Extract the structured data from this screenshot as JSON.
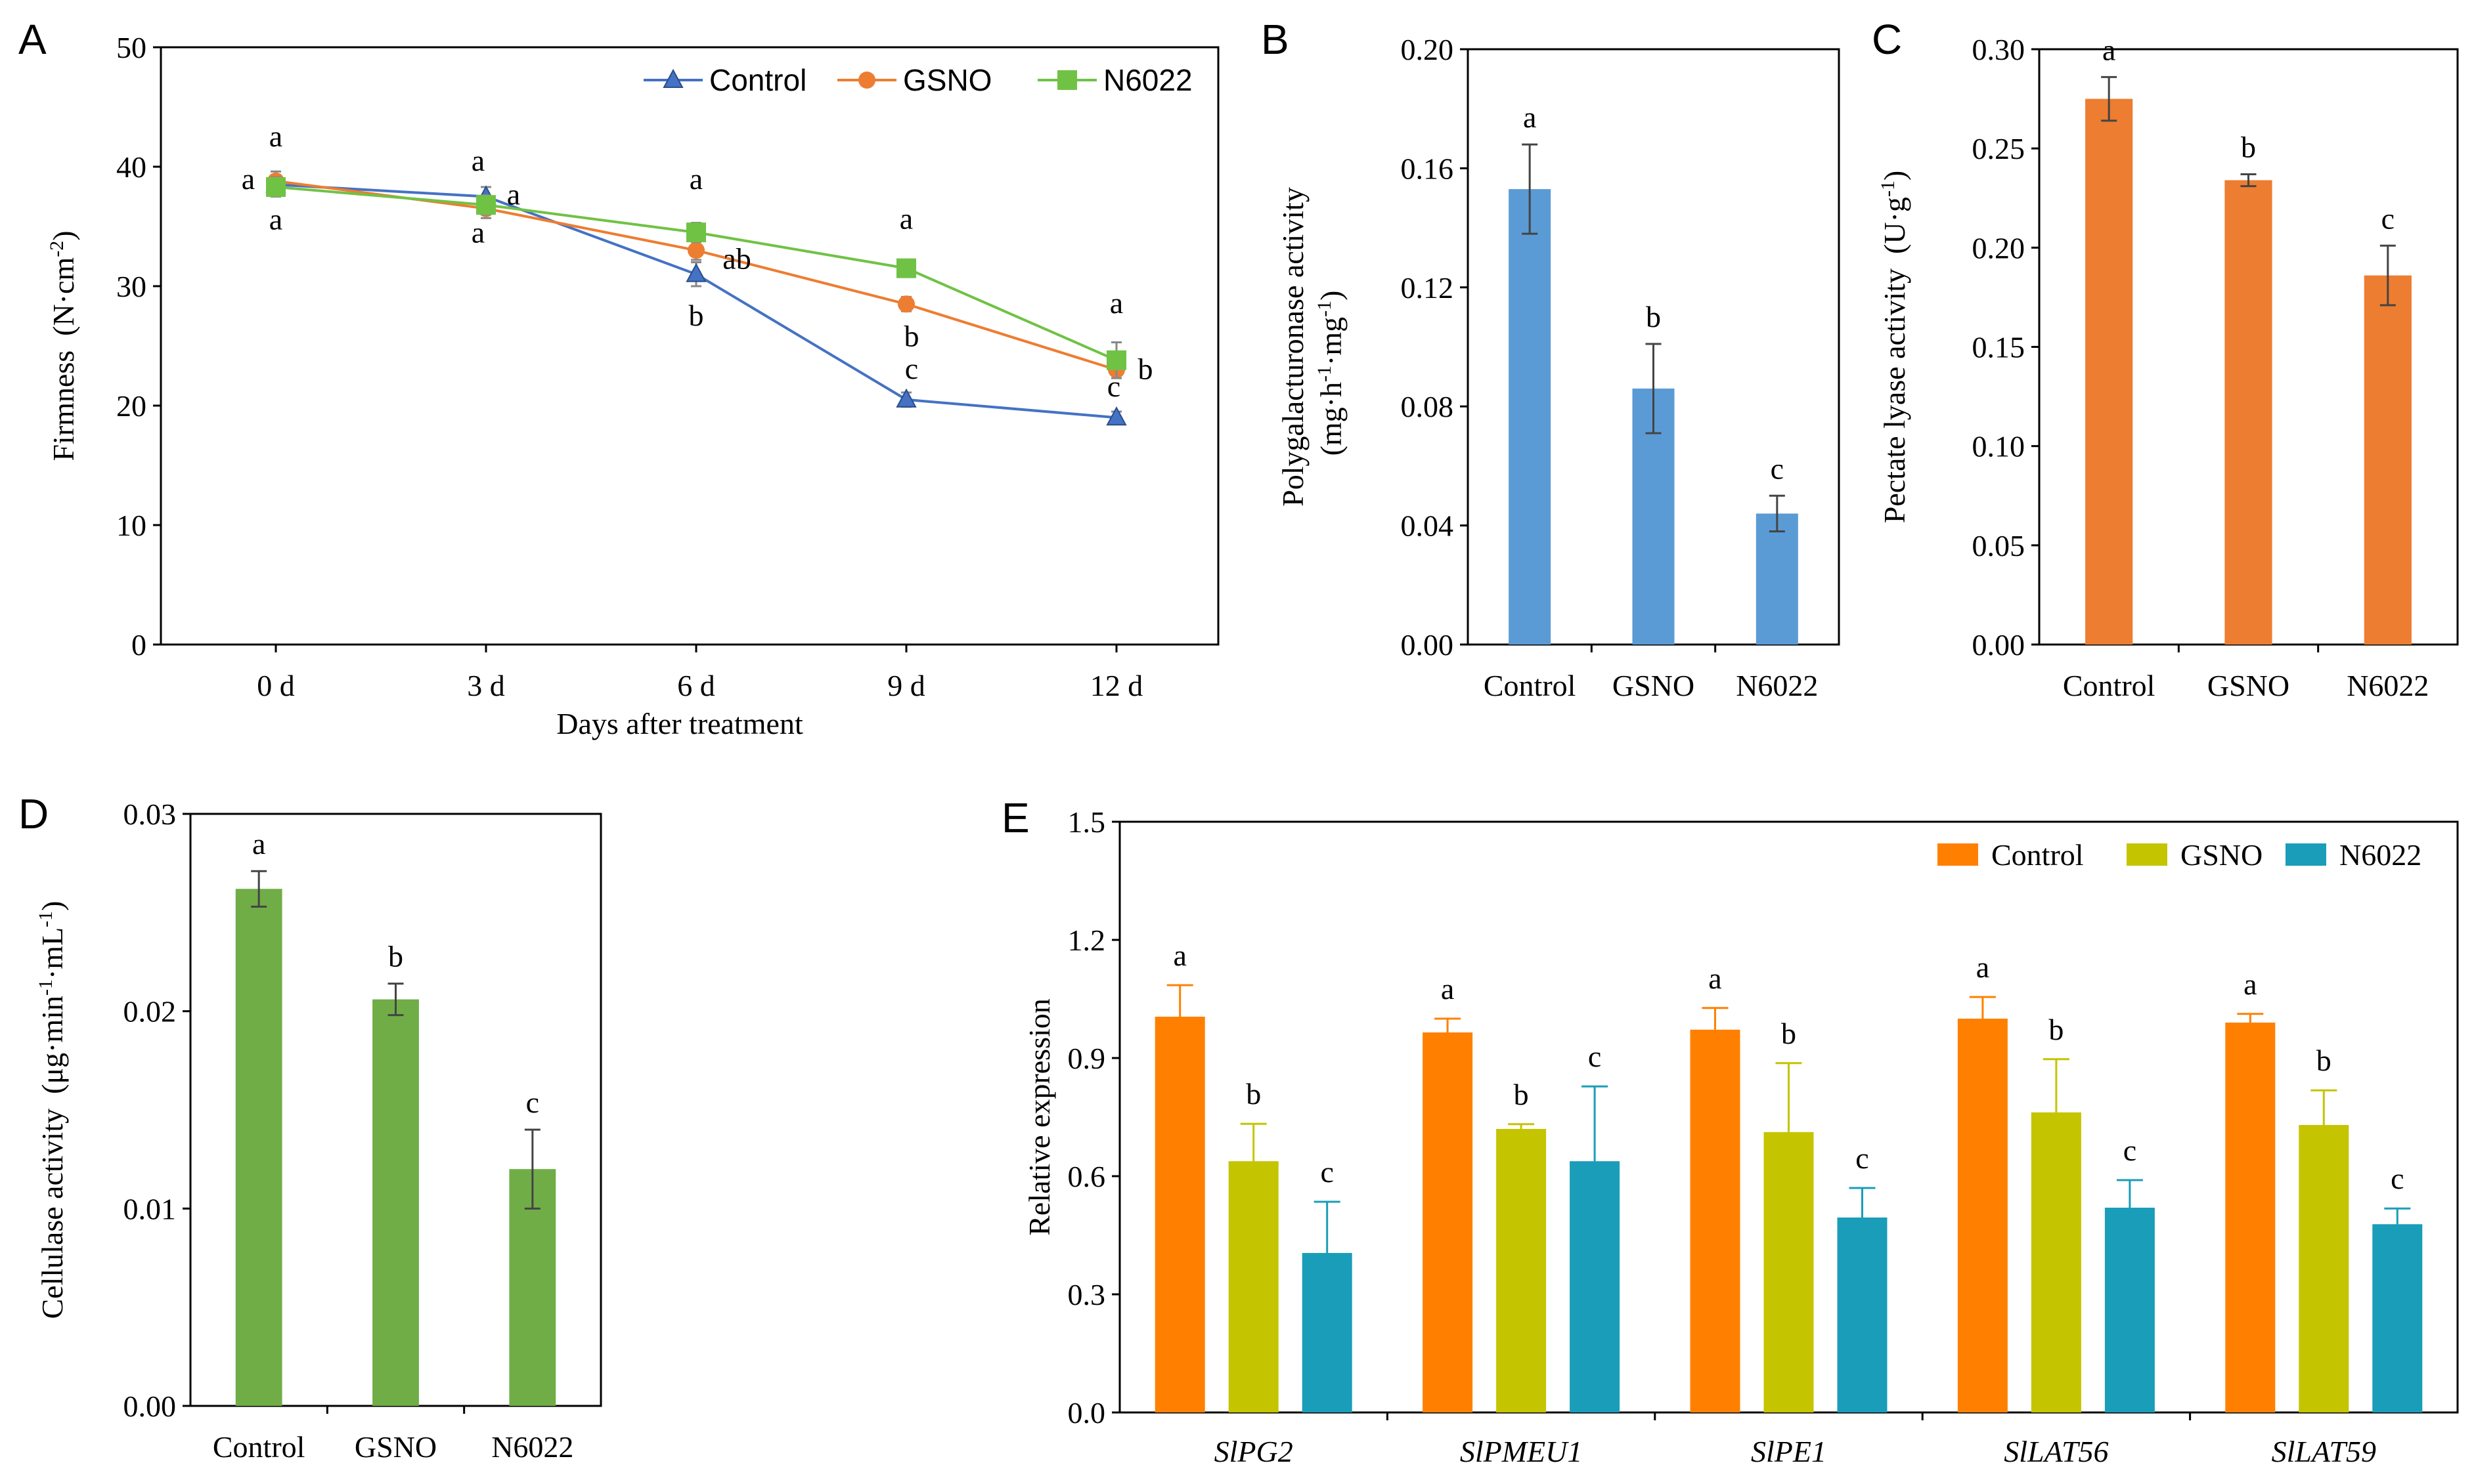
{
  "colors": {
    "control_line": "#4472C4",
    "gsno_line": "#ED7D31",
    "n6022_line": "#70C244",
    "bar_b": "#5B9BD5",
    "bar_c": "#ED7D31",
    "bar_d": "#70AD47",
    "e_control": "#FF8000",
    "e_gsno": "#C4C400",
    "e_n6022": "#1A9DB8"
  },
  "chart_data": [
    {
      "panel": "A",
      "type": "line",
      "ylabel_main": "Firmness",
      "ylabel_unit": "(N·cm",
      "ylabel_sup": "-2",
      "ylabel_close": ")",
      "xlabel": "Days after treatment",
      "categories": [
        "0  d",
        "3  d",
        "6  d",
        "9  d",
        "12  d"
      ],
      "ylim": [
        0,
        50
      ],
      "yticks": [
        "0",
        "10",
        "20",
        "30",
        "40",
        "50"
      ],
      "series": [
        {
          "name": "Control",
          "marker": "triangle",
          "values": [
            38.5,
            37.5,
            31.0,
            20.5,
            19.0
          ],
          "errors": [
            0.8,
            0.8,
            1.0,
            0.6,
            0.5
          ],
          "letters": [
            "a",
            "a",
            "b",
            "c",
            "c"
          ]
        },
        {
          "name": "GSNO",
          "marker": "circle",
          "values": [
            38.8,
            36.5,
            33.0,
            28.5,
            23.0
          ],
          "errors": [
            0.8,
            0.8,
            0.8,
            0.6,
            0.5
          ],
          "letters": [
            "a",
            "a",
            "ab",
            "b",
            "b"
          ]
        },
        {
          "name": "N6022",
          "marker": "square",
          "values": [
            38.3,
            36.8,
            34.5,
            31.5,
            23.8
          ],
          "errors": [
            0.8,
            0.8,
            0.8,
            0.6,
            1.5
          ],
          "letters": [
            "a",
            "a",
            "a",
            "a",
            "a"
          ]
        }
      ]
    },
    {
      "panel": "B",
      "type": "bar",
      "ylabel_main": "Polygalacturonase  activity",
      "ylabel_unit": "(mg·h",
      "ylabel_sup1": "-1",
      "ylabel_mid": "·mg",
      "ylabel_sup2": "-1",
      "ylabel_close": ")",
      "categories": [
        "Control",
        "GSNO",
        "N6022"
      ],
      "values": [
        0.153,
        0.086,
        0.044
      ],
      "errors": [
        0.015,
        0.015,
        0.006
      ],
      "letters": [
        "a",
        "b",
        "c"
      ],
      "ylim": [
        0,
        0.2
      ],
      "yticks": [
        "0.00",
        "0.04",
        "0.08",
        "0.12",
        "0.16",
        "0.20"
      ]
    },
    {
      "panel": "C",
      "type": "bar",
      "ylabel_main": "Pectate lyase  activity",
      "ylabel_unit": "(U·g",
      "ylabel_sup": "-1",
      "ylabel_close": ")",
      "categories": [
        "Control",
        "GSNO",
        "N6022"
      ],
      "values": [
        0.275,
        0.234,
        0.186
      ],
      "errors": [
        0.011,
        0.003,
        0.015
      ],
      "letters": [
        "a",
        "b",
        "c"
      ],
      "ylim": [
        0,
        0.3
      ],
      "yticks": [
        "0.00",
        "0.05",
        "0.10",
        "0.15",
        "0.20",
        "0.25",
        "0.30"
      ]
    },
    {
      "panel": "D",
      "type": "bar",
      "ylabel_main": "Cellulase  activity",
      "ylabel_unit": "(μg·min",
      "ylabel_sup1": "-1",
      "ylabel_mid": "·mL",
      "ylabel_sup2": "-1",
      "ylabel_close": ")",
      "categories": [
        "Control",
        "GSNO",
        "N6022"
      ],
      "values": [
        0.0262,
        0.0206,
        0.012
      ],
      "errors": [
        0.0009,
        0.0008,
        0.002
      ],
      "letters": [
        "a",
        "b",
        "c"
      ],
      "ylim": [
        0,
        0.03
      ],
      "yticks": [
        "0.00",
        "0.01",
        "0.02",
        "0.03"
      ]
    },
    {
      "panel": "E",
      "type": "bar",
      "ylabel": "Relative expression",
      "categories": [
        "SlPG2",
        "SlPMEU1",
        "SlPE1",
        "SlLAT56",
        "SlLAT59"
      ],
      "ylim": [
        0,
        1.5
      ],
      "yticks": [
        "0.0",
        "0.3",
        "0.6",
        "0.9",
        "1.2",
        "1.5"
      ],
      "series": [
        {
          "name": "Control",
          "values": [
            1.005,
            0.965,
            0.972,
            1.0,
            0.99
          ],
          "errors": [
            0.08,
            0.035,
            0.055,
            0.055,
            0.022
          ],
          "letters": [
            "a",
            "a",
            "a",
            "a",
            "a"
          ]
        },
        {
          "name": "GSNO",
          "values": [
            0.638,
            0.72,
            0.712,
            0.762,
            0.73
          ],
          "errors": [
            0.095,
            0.012,
            0.175,
            0.135,
            0.088
          ],
          "letters": [
            "b",
            "b",
            "b",
            "b",
            "b"
          ]
        },
        {
          "name": "N6022",
          "values": [
            0.405,
            0.638,
            0.495,
            0.52,
            0.478
          ],
          "errors": [
            0.13,
            0.19,
            0.075,
            0.07,
            0.04
          ],
          "letters": [
            "c",
            "c",
            "c",
            "c",
            "c"
          ]
        }
      ]
    }
  ]
}
